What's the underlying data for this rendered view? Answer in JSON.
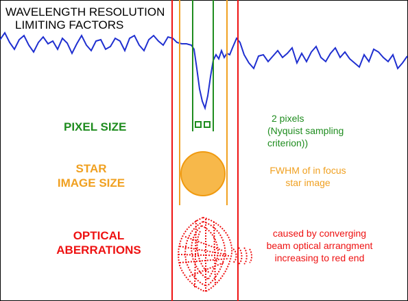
{
  "title": {
    "line1": "WAVELENGTH RESOLUTION",
    "line2": "LIMITING FACTORS"
  },
  "rows": {
    "pixel": {
      "heading": "PIXEL SIZE",
      "note_lines": [
        "2 pixels",
        "(Nyquist sampling",
        "criterion))"
      ]
    },
    "star": {
      "heading_lines": [
        "STAR",
        "IMAGE SIZE"
      ],
      "note_lines": [
        "FWHM of in focus",
        "star image"
      ]
    },
    "optical": {
      "heading_lines": [
        "OPTICAL",
        "ABERRATIONS"
      ],
      "note_lines": [
        "caused by converging",
        "beam optical arrangment",
        "increasing to red end"
      ]
    }
  },
  "colors": {
    "spectrum": "#1f2fd0",
    "pixel": "#1e8c1e",
    "star": "#f0a020",
    "optical": "#ee1111",
    "frame": "#000000"
  }
}
